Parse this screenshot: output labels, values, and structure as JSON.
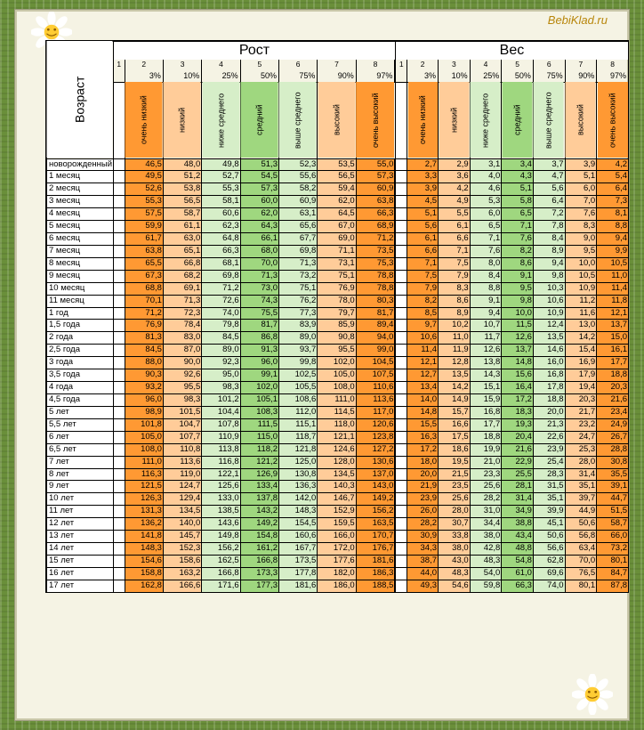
{
  "watermark": "BebiKlad.ru",
  "headers": {
    "age": "Возраст",
    "height": "Рост",
    "weight": "Вес"
  },
  "indices": [
    "1",
    "2",
    "3",
    "4",
    "5",
    "6",
    "7",
    "8"
  ],
  "percentiles": [
    "3%",
    "10%",
    "25%",
    "50%",
    "75%",
    "90%",
    "97%"
  ],
  "col_labels": [
    "очень низкий",
    "низкий",
    "ниже среднего",
    "средний",
    "выше среднего",
    "высокий",
    "очень высокий"
  ],
  "col_colors": [
    "c-o",
    "c-lo",
    "c-lg",
    "c-g",
    "c-lg",
    "c-lo",
    "c-o"
  ],
  "ages": [
    "новорожденный",
    "1 месяц",
    "2 месяц",
    "3 месяц",
    "4 месяц",
    "5 месяц",
    "6 месяц",
    "7 месяц",
    "8 месяц",
    "9 месяц",
    "10 месяц",
    "11 месяц",
    "1 год",
    "1,5 года",
    "2 года",
    "2,5 года",
    "3 года",
    "3,5 года",
    "4 года",
    "4,5 года",
    "5 лет",
    "5,5 лет",
    "6 лет",
    "6,5 лет",
    "7 лет",
    "8 лет",
    "9 лет",
    "10 лет",
    "11 лет",
    "12 лет",
    "13 лет",
    "14 лет",
    "15 лет",
    "16 лет",
    "17 лет"
  ],
  "height_data": [
    [
      "46,5",
      "48,0",
      "49,8",
      "51,3",
      "52,3",
      "53,5",
      "55,0"
    ],
    [
      "49,5",
      "51,2",
      "52,7",
      "54,5",
      "55,6",
      "56,5",
      "57,3"
    ],
    [
      "52,6",
      "53,8",
      "55,3",
      "57,3",
      "58,2",
      "59,4",
      "60,9"
    ],
    [
      "55,3",
      "56,5",
      "58,1",
      "60,0",
      "60,9",
      "62,0",
      "63,8"
    ],
    [
      "57,5",
      "58,7",
      "60,6",
      "62,0",
      "63,1",
      "64,5",
      "66,3"
    ],
    [
      "59,9",
      "61,1",
      "62,3",
      "64,3",
      "65,6",
      "67,0",
      "68,9"
    ],
    [
      "61,7",
      "63,0",
      "64,8",
      "66,1",
      "67,7",
      "69,0",
      "71,2"
    ],
    [
      "63,8",
      "65,1",
      "66,3",
      "68,0",
      "69,8",
      "71,1",
      "73,5"
    ],
    [
      "65,5",
      "66,8",
      "68,1",
      "70,0",
      "71,3",
      "73,1",
      "75,3"
    ],
    [
      "67,3",
      "68,2",
      "69,8",
      "71,3",
      "73,2",
      "75,1",
      "78,8"
    ],
    [
      "68,8",
      "69,1",
      "71,2",
      "73,0",
      "75,1",
      "76,9",
      "78,8"
    ],
    [
      "70,1",
      "71,3",
      "72,6",
      "74,3",
      "76,2",
      "78,0",
      "80,3"
    ],
    [
      "71,2",
      "72,3",
      "74,0",
      "75,5",
      "77,3",
      "79,7",
      "81,7"
    ],
    [
      "76,9",
      "78,4",
      "79,8",
      "81,7",
      "83,9",
      "85,9",
      "89,4"
    ],
    [
      "81,3",
      "83,0",
      "84,5",
      "86,8",
      "89,0",
      "90,8",
      "94,0"
    ],
    [
      "84,5",
      "87,0",
      "89,0",
      "91,3",
      "93,7",
      "95,5",
      "99,0"
    ],
    [
      "88,0",
      "90,0",
      "92,3",
      "96,0",
      "99,8",
      "102,0",
      "104,5"
    ],
    [
      "90,3",
      "92,6",
      "95,0",
      "99,1",
      "102,5",
      "105,0",
      "107,5"
    ],
    [
      "93,2",
      "95,5",
      "98,3",
      "102,0",
      "105,5",
      "108,0",
      "110,6"
    ],
    [
      "96,0",
      "98,3",
      "101,2",
      "105,1",
      "108,6",
      "111,0",
      "113,6"
    ],
    [
      "98,9",
      "101,5",
      "104,4",
      "108,3",
      "112,0",
      "114,5",
      "117,0"
    ],
    [
      "101,8",
      "104,7",
      "107,8",
      "111,5",
      "115,1",
      "118,0",
      "120,6"
    ],
    [
      "105,0",
      "107,7",
      "110,9",
      "115,0",
      "118,7",
      "121,1",
      "123,8"
    ],
    [
      "108,0",
      "110,8",
      "113,8",
      "118,2",
      "121,8",
      "124,6",
      "127,2"
    ],
    [
      "111,0",
      "113,6",
      "116,8",
      "121,2",
      "125,0",
      "128,0",
      "130,6"
    ],
    [
      "116,3",
      "119,0",
      "122,1",
      "126,9",
      "130,8",
      "134,5",
      "137,0"
    ],
    [
      "121,5",
      "124,7",
      "125,6",
      "133,4",
      "136,3",
      "140,3",
      "143,0"
    ],
    [
      "126,3",
      "129,4",
      "133,0",
      "137,8",
      "142,0",
      "146,7",
      "149,2"
    ],
    [
      "131,3",
      "134,5",
      "138,5",
      "143,2",
      "148,3",
      "152,9",
      "156,2"
    ],
    [
      "136,2",
      "140,0",
      "143,6",
      "149,2",
      "154,5",
      "159,5",
      "163,5"
    ],
    [
      "141,8",
      "145,7",
      "149,8",
      "154,8",
      "160,6",
      "166,0",
      "170,7"
    ],
    [
      "148,3",
      "152,3",
      "156,2",
      "161,2",
      "167,7",
      "172,0",
      "176,7"
    ],
    [
      "154,6",
      "158,6",
      "162,5",
      "166,8",
      "173,5",
      "177,6",
      "181,6"
    ],
    [
      "158,8",
      "163,2",
      "166,8",
      "173,3",
      "177,8",
      "182,0",
      "186,3"
    ],
    [
      "162,8",
      "166,6",
      "171,6",
      "177,3",
      "181,6",
      "186,0",
      "188,5"
    ]
  ],
  "weight_data": [
    [
      "2,7",
      "2,9",
      "3,1",
      "3,4",
      "3,7",
      "3,9",
      "4,2"
    ],
    [
      "3,3",
      "3,6",
      "4,0",
      "4,3",
      "4,7",
      "5,1",
      "5,4"
    ],
    [
      "3,9",
      "4,2",
      "4,6",
      "5,1",
      "5,6",
      "6,0",
      "6,4"
    ],
    [
      "4,5",
      "4,9",
      "5,3",
      "5,8",
      "6,4",
      "7,0",
      "7,3"
    ],
    [
      "5,1",
      "5,5",
      "6,0",
      "6,5",
      "7,2",
      "7,6",
      "8,1"
    ],
    [
      "5,6",
      "6,1",
      "6,5",
      "7,1",
      "7,8",
      "8,3",
      "8,8"
    ],
    [
      "6,1",
      "6,6",
      "7,1",
      "7,6",
      "8,4",
      "9,0",
      "9,4"
    ],
    [
      "6,6",
      "7,1",
      "7,6",
      "8,2",
      "8,9",
      "9,5",
      "9,9"
    ],
    [
      "7,1",
      "7,5",
      "8,0",
      "8,6",
      "9,4",
      "10,0",
      "10,5"
    ],
    [
      "7,5",
      "7,9",
      "8,4",
      "9,1",
      "9,8",
      "10,5",
      "11,0"
    ],
    [
      "7,9",
      "8,3",
      "8,8",
      "9,5",
      "10,3",
      "10,9",
      "11,4"
    ],
    [
      "8,2",
      "8,6",
      "9,1",
      "9,8",
      "10,6",
      "11,2",
      "11,8"
    ],
    [
      "8,5",
      "8,9",
      "9,4",
      "10,0",
      "10,9",
      "11,6",
      "12,1"
    ],
    [
      "9,7",
      "10,2",
      "10,7",
      "11,5",
      "12,4",
      "13,0",
      "13,7"
    ],
    [
      "10,6",
      "11,0",
      "11,7",
      "12,6",
      "13,5",
      "14,2",
      "15,0"
    ],
    [
      "11,4",
      "11,9",
      "12,6",
      "13,7",
      "14,6",
      "15,4",
      "16,1"
    ],
    [
      "12,1",
      "12,8",
      "13,8",
      "14,8",
      "16,0",
      "16,9",
      "17,7"
    ],
    [
      "12,7",
      "13,5",
      "14,3",
      "15,6",
      "16,8",
      "17,9",
      "18,8"
    ],
    [
      "13,4",
      "14,2",
      "15,1",
      "16,4",
      "17,8",
      "19,4",
      "20,3"
    ],
    [
      "14,0",
      "14,9",
      "15,9",
      "17,2",
      "18,8",
      "20,3",
      "21,6"
    ],
    [
      "14,8",
      "15,7",
      "16,8",
      "18,3",
      "20,0",
      "21,7",
      "23,4"
    ],
    [
      "15,5",
      "16,6",
      "17,7",
      "19,3",
      "21,3",
      "23,2",
      "24,9"
    ],
    [
      "16,3",
      "17,5",
      "18,8",
      "20,4",
      "22,6",
      "24,7",
      "26,7"
    ],
    [
      "17,2",
      "18,6",
      "19,9",
      "21,6",
      "23,9",
      "25,3",
      "28,8"
    ],
    [
      "18,0",
      "19,5",
      "21,0",
      "22,9",
      "25,4",
      "28,0",
      "30,8"
    ],
    [
      "20,0",
      "21,5",
      "23,3",
      "25,5",
      "28,3",
      "31,4",
      "35,5"
    ],
    [
      "21,9",
      "23,5",
      "25,6",
      "28,1",
      "31,5",
      "35,1",
      "39,1"
    ],
    [
      "23,9",
      "25,6",
      "28,2",
      "31,4",
      "35,1",
      "39,7",
      "44,7"
    ],
    [
      "26,0",
      "28,0",
      "31,0",
      "34,9",
      "39,9",
      "44,9",
      "51,5"
    ],
    [
      "28,2",
      "30,7",
      "34,4",
      "38,8",
      "45,1",
      "50,6",
      "58,7"
    ],
    [
      "30,9",
      "33,8",
      "38,0",
      "43,4",
      "50,6",
      "56,8",
      "66,0"
    ],
    [
      "34,3",
      "38,0",
      "42,8",
      "48,8",
      "56,6",
      "63,4",
      "73,2"
    ],
    [
      "38,7",
      "43,0",
      "48,3",
      "54,8",
      "62,8",
      "70,0",
      "80,1"
    ],
    [
      "44,0",
      "48,3",
      "54,0",
      "61,0",
      "69,6",
      "76,5",
      "84,7"
    ],
    [
      "49,3",
      "54,6",
      "59,8",
      "66,3",
      "74,0",
      "80,1",
      "87,8"
    ]
  ]
}
